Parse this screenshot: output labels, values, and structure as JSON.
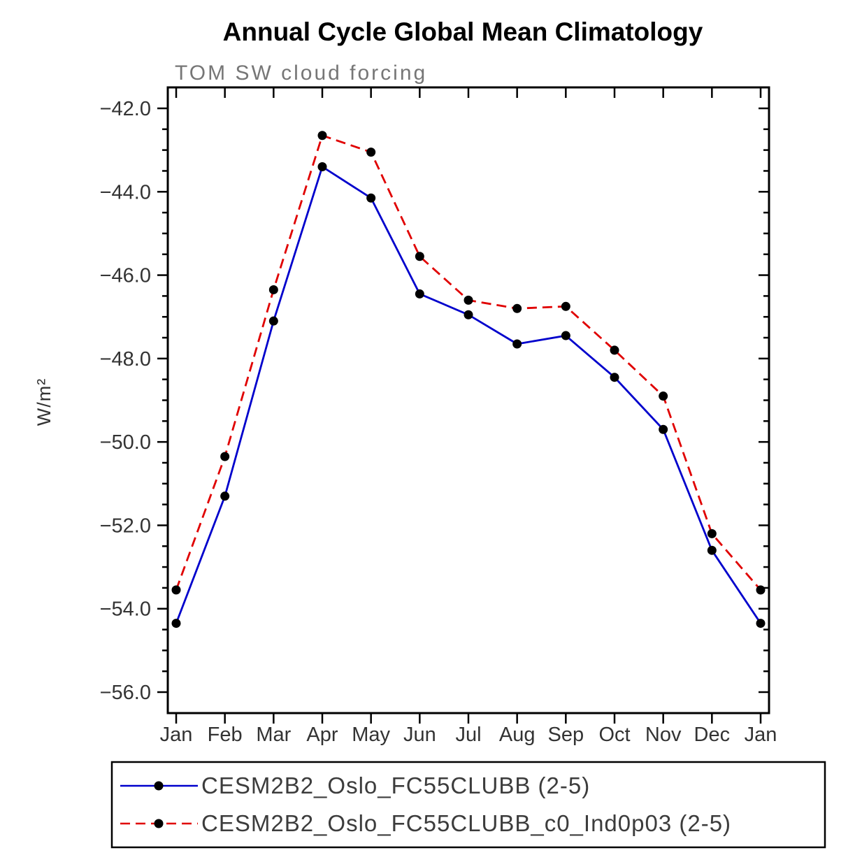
{
  "chart_data": {
    "type": "line",
    "title": "Annual Cycle Global Mean Climatology",
    "subtitle": "TOM SW cloud forcing",
    "ylabel": "W/m²",
    "xlabel": "",
    "categories": [
      "Jan",
      "Feb",
      "Mar",
      "Apr",
      "May",
      "Jun",
      "Jul",
      "Aug",
      "Sep",
      "Oct",
      "Nov",
      "Dec",
      "Jan"
    ],
    "ylim": [
      -56.0,
      -42.0
    ],
    "ytick_step": 2.0,
    "ytick_minor_step": 0.5,
    "grid": false,
    "legend_position": "bottom",
    "marker_color": "#000000",
    "axis_color": "#000000",
    "series": [
      {
        "name": "CESM2B2_Oslo_FC55CLUBB (2-5)",
        "color": "#0000cc",
        "line_style": "solid",
        "values": [
          -54.35,
          -51.3,
          -47.1,
          -43.4,
          -44.15,
          -46.45,
          -46.95,
          -47.65,
          -47.45,
          -48.45,
          -49.7,
          -52.6,
          -54.35
        ]
      },
      {
        "name": "CESM2B2_Oslo_FC55CLUBB_c0_Ind0p03 (2-5)",
        "color": "#e00000",
        "line_style": "dashed",
        "values": [
          -53.55,
          -50.35,
          -46.35,
          -42.65,
          -43.05,
          -45.55,
          -46.6,
          -46.8,
          -46.75,
          -47.8,
          -48.9,
          -52.2,
          -53.55
        ]
      }
    ]
  }
}
